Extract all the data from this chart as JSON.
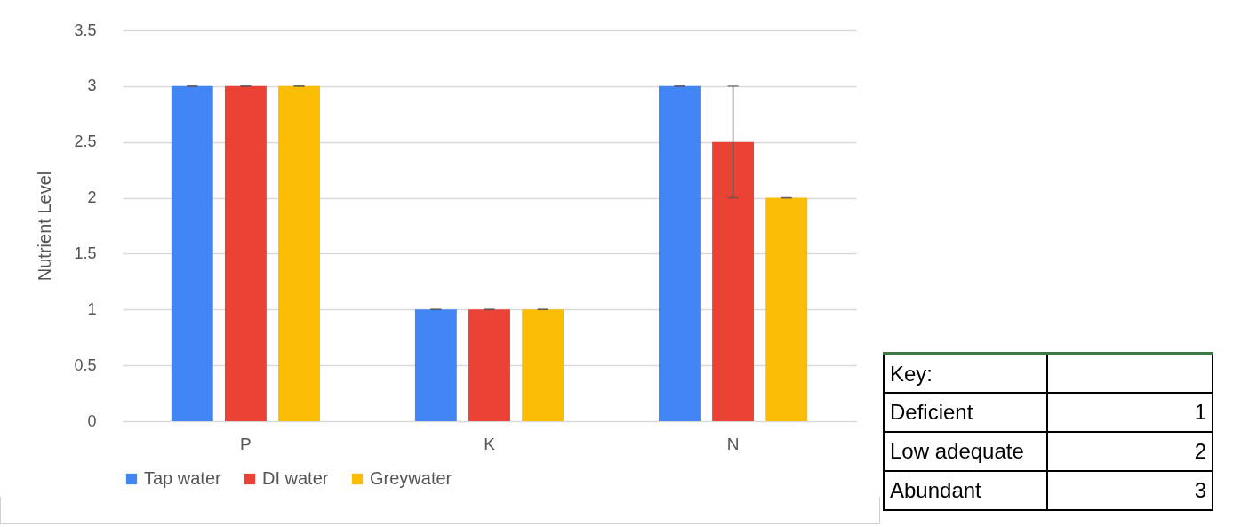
{
  "chart_data": {
    "type": "bar",
    "ylabel": "Nutrient Level",
    "categories": [
      "P",
      "K",
      "N"
    ],
    "series": [
      {
        "name": "Tap water",
        "color": "#4285f4",
        "values": [
          3,
          1,
          3
        ],
        "errors": [
          0,
          0,
          0
        ]
      },
      {
        "name": "DI water",
        "color": "#ea4335",
        "values": [
          3,
          1,
          2.5
        ],
        "errors": [
          0,
          0,
          0.5
        ]
      },
      {
        "name": "Greywater",
        "color": "#fbbc04",
        "values": [
          3,
          1,
          2
        ],
        "errors": [
          0,
          0,
          0
        ]
      }
    ],
    "ylim": [
      0,
      3.5
    ],
    "yticks": [
      0,
      0.5,
      1,
      1.5,
      2,
      2.5,
      3,
      3.5
    ],
    "grid": "y",
    "legend": "bottom",
    "annotations": [
      "Key:",
      "Deficient",
      "1",
      "Low adequate",
      "2",
      "Abundant",
      "3"
    ]
  }
}
